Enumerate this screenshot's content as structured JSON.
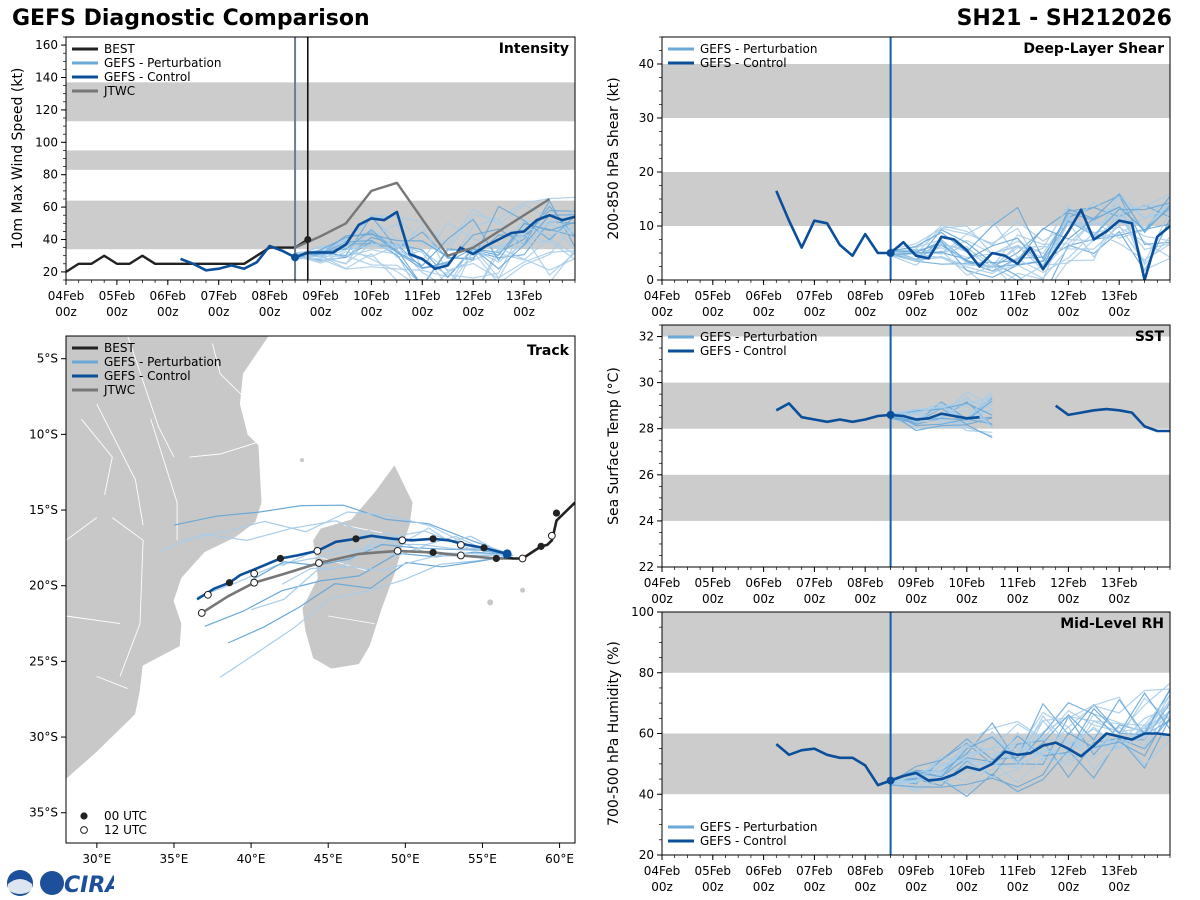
{
  "header": {
    "title_left": "GEFS Diagnostic Comparison",
    "title_right": "SH21 - SH212026"
  },
  "logo": {
    "text": "CIRA",
    "icon": "noaa-seal"
  },
  "colors": {
    "best": "#222222",
    "control": "#0b4f9a",
    "perturbation": "#6aa9d8",
    "perturbation_light": "#a9cde9",
    "jtwc": "#777777",
    "band": "#cccccc",
    "land": "#c8c8c8",
    "now_line": "#1060a8"
  },
  "legend_labels": {
    "best": "BEST",
    "perturbation": "GEFS - Perturbation",
    "control": "GEFS - Control",
    "jtwc": "JTWC",
    "utc00": "00 UTC",
    "utc12": "12 UTC"
  },
  "time_axis": {
    "start_day": 4,
    "end_day": 14,
    "tick_days": [
      4,
      5,
      6,
      7,
      8,
      9,
      10,
      11,
      12,
      13
    ],
    "tick_labels": [
      "04Feb",
      "05Feb",
      "06Feb",
      "07Feb",
      "08Feb",
      "09Feb",
      "10Feb",
      "11Feb",
      "12Feb",
      "13Feb"
    ],
    "tick_sublabel": "00z",
    "analysis_day": 8.5
  },
  "chart_data": [
    {
      "id": "intensity",
      "type": "line",
      "panel_title": "Intensity",
      "ylabel": "10m Max Wind Speed (kt)",
      "ylim": [
        15,
        165
      ],
      "yticks": [
        20,
        40,
        60,
        80,
        100,
        120,
        140,
        160
      ],
      "bands": [
        [
          34,
          64
        ],
        [
          83,
          95
        ],
        [
          113,
          137
        ]
      ],
      "best_line_day": 8.75,
      "series": [
        {
          "name": "BEST",
          "x": [
            4.0,
            4.25,
            4.5,
            4.75,
            5.0,
            5.25,
            5.5,
            5.75,
            6.0,
            6.25,
            6.5,
            6.75,
            7.0,
            7.25,
            7.5,
            7.75,
            8.0,
            8.25,
            8.5,
            8.75
          ],
          "y": [
            20,
            25,
            25,
            30,
            25,
            25,
            30,
            25,
            25,
            25,
            25,
            25,
            25,
            25,
            25,
            30,
            35,
            35,
            35,
            40
          ]
        },
        {
          "name": "GEFS - Control",
          "x": [
            6.25,
            6.5,
            6.75,
            7.0,
            7.25,
            7.5,
            7.75,
            8.0,
            8.25,
            8.5,
            8.75,
            9.0,
            9.25,
            9.5,
            9.75,
            10.0,
            10.25,
            10.5,
            10.75,
            11.0,
            11.25,
            11.5,
            11.75,
            12.0,
            12.25,
            12.5,
            12.75,
            13.0,
            13.25,
            13.5,
            13.75,
            14.0
          ],
          "y": [
            28,
            25,
            21,
            22,
            24,
            22,
            26,
            36,
            33,
            29,
            32,
            32,
            32,
            37,
            49,
            53,
            52,
            57,
            31,
            28,
            22,
            24,
            35,
            31,
            36,
            40,
            44,
            45,
            52,
            55,
            52,
            54
          ]
        },
        {
          "name": "JTWC",
          "x": [
            8.5,
            9.0,
            9.5,
            10.0,
            10.5,
            11.5,
            12.0,
            13.5
          ],
          "y": [
            35,
            42,
            50,
            70,
            75,
            30,
            35,
            65
          ]
        }
      ],
      "perturbation_pattern": {
        "x": [
          8.5,
          9.0,
          9.5,
          10.0,
          10.5,
          11.0,
          11.5,
          12.0,
          12.5,
          13.0,
          13.5,
          14.0
        ],
        "y": [
          30,
          31,
          33,
          40,
          34,
          25,
          22,
          30,
          32,
          38,
          42,
          45
        ]
      }
    },
    {
      "id": "shear",
      "type": "line",
      "panel_title": "Deep-Layer Shear",
      "ylabel": "200-850 hPa Shear (kt)",
      "ylim": [
        0,
        45
      ],
      "yticks": [
        0,
        10,
        20,
        30,
        40
      ],
      "bands": [
        [
          10,
          20
        ],
        [
          30,
          40
        ]
      ],
      "series": [
        {
          "name": "GEFS - Control",
          "x": [
            6.25,
            6.5,
            6.75,
            7.0,
            7.25,
            7.5,
            7.75,
            8.0,
            8.25,
            8.5,
            8.75,
            9.0,
            9.25,
            9.5,
            9.75,
            10.0,
            10.25,
            10.5,
            10.75,
            11.0,
            11.25,
            11.5,
            11.75,
            12.0,
            12.25,
            12.5,
            12.75,
            13.0,
            13.25,
            13.5,
            13.75,
            14.0
          ],
          "y": [
            16.5,
            11,
            6,
            11,
            10.5,
            6.5,
            4.5,
            8.5,
            5,
            5,
            7,
            4.5,
            4,
            8,
            7.5,
            5.5,
            2.5,
            5,
            4.5,
            3,
            6,
            2,
            5.5,
            9,
            13,
            7.5,
            9,
            11,
            10.5,
            0,
            8,
            10
          ]
        }
      ],
      "perturbation_pattern": {
        "x": [
          8.5,
          9.0,
          9.5,
          10.0,
          10.5,
          11.0,
          11.5,
          12.0,
          12.5,
          13.0,
          13.5,
          14.0
        ],
        "y": [
          5,
          5,
          7,
          6,
          5,
          6,
          5,
          10,
          9,
          12,
          10,
          12
        ]
      }
    },
    {
      "id": "sst",
      "type": "line",
      "panel_title": "SST",
      "ylabel": "Sea Surface Temp (°C)",
      "ylim": [
        22,
        32.5
      ],
      "yticks": [
        22,
        24,
        26,
        28,
        30,
        32
      ],
      "bands": [
        [
          24,
          26
        ],
        [
          28,
          30
        ],
        [
          32,
          32.5
        ]
      ],
      "series": [
        {
          "name": "GEFS - Control",
          "x": [
            6.25,
            6.5,
            6.75,
            7.0,
            7.25,
            7.5,
            7.75,
            8.0,
            8.25,
            8.5,
            8.75,
            9.0,
            9.25,
            9.5,
            9.75,
            10.0,
            10.25
          ],
          "y": [
            28.8,
            29.1,
            28.5,
            28.4,
            28.3,
            28.4,
            28.3,
            28.4,
            28.55,
            28.6,
            28.55,
            28.4,
            28.45,
            28.65,
            28.55,
            28.45,
            28.5
          ]
        },
        {
          "name": "GEFS - Control (late)",
          "x": [
            11.75,
            12.0,
            12.25,
            12.5,
            12.75,
            13.0,
            13.25,
            13.5,
            13.75,
            14.0
          ],
          "y": [
            29.0,
            28.6,
            28.7,
            28.8,
            28.85,
            28.8,
            28.7,
            28.1,
            27.9,
            27.9
          ]
        }
      ],
      "perturbation_pattern": {
        "x": [
          8.5,
          9.0,
          9.5,
          10.0,
          10.5
        ],
        "y": [
          28.6,
          28.4,
          28.6,
          28.5,
          28.5
        ]
      }
    },
    {
      "id": "rh",
      "type": "line",
      "panel_title": "Mid-Level RH",
      "ylabel": "700-500 hPa Humidity (%)",
      "ylim": [
        20,
        100
      ],
      "yticks": [
        20,
        40,
        60,
        80,
        100
      ],
      "bands": [
        [
          40,
          60
        ],
        [
          80,
          100
        ]
      ],
      "series": [
        {
          "name": "GEFS - Control",
          "x": [
            6.25,
            6.5,
            6.75,
            7.0,
            7.25,
            7.5,
            7.75,
            8.0,
            8.25,
            8.5,
            8.75,
            9.0,
            9.25,
            9.5,
            9.75,
            10.0,
            10.25,
            10.5,
            10.75,
            11.0,
            11.25,
            11.5,
            11.75,
            12.0,
            12.25,
            12.5,
            12.75,
            13.0,
            13.25,
            13.5,
            13.75,
            14.0
          ],
          "y": [
            56.5,
            53,
            54.5,
            55,
            53,
            52,
            52,
            49.5,
            43,
            44.5,
            46,
            47,
            44.5,
            45,
            46.5,
            49,
            48,
            50,
            54,
            53,
            53.5,
            56,
            57,
            55,
            52.5,
            56,
            60,
            59,
            58,
            60,
            60,
            59.5
          ]
        }
      ],
      "perturbation_pattern": {
        "x": [
          8.5,
          9.0,
          9.5,
          10.0,
          10.5,
          11.0,
          11.5,
          12.0,
          12.5,
          13.0,
          13.5,
          14.0
        ],
        "y": [
          44,
          45,
          47,
          49,
          51,
          53,
          55,
          57,
          58,
          60,
          61,
          63
        ]
      }
    }
  ],
  "track": {
    "panel_title": "Track",
    "lon_range": [
      28,
      61
    ],
    "lat_range": [
      -37,
      -3.5
    ],
    "lon_ticks": [
      30,
      35,
      40,
      45,
      50,
      55,
      60
    ],
    "lon_tick_labels": [
      "30°E",
      "35°E",
      "40°E",
      "45°E",
      "50°E",
      "55°E",
      "60°E"
    ],
    "lat_ticks": [
      -5,
      -10,
      -15,
      -20,
      -25,
      -30,
      -35
    ],
    "lat_tick_labels": [
      "5°S",
      "10°S",
      "15°S",
      "20°S",
      "25°S",
      "30°S",
      "35°S"
    ],
    "best": {
      "lon": [
        61,
        60.3,
        59.8,
        59.6,
        59.5,
        59.2,
        58.8,
        58.2,
        57.6,
        57.0,
        56.4
      ],
      "lat": [
        -14.5,
        -15.2,
        -15.7,
        -16.6,
        -17.0,
        -17.3,
        -17.4,
        -17.8,
        -18.2,
        -18.2,
        -18.1
      ],
      "dots00_lon": [
        59.8,
        58.8
      ],
      "dots00_lat": [
        -15.2,
        -17.4
      ],
      "dots12_lon": [
        59.5,
        57.6
      ],
      "dots12_lat": [
        -16.7,
        -18.2
      ]
    },
    "control": {
      "lon": [
        56.6,
        55.1,
        54.0,
        52.8,
        51.8,
        50.4,
        49.2,
        47.8,
        46.8,
        45.5,
        44.3,
        43.0,
        41.9,
        40.5,
        39.3,
        38.6,
        37.6,
        36.5
      ],
      "lat": [
        -17.9,
        -17.5,
        -17.3,
        -17.0,
        -16.9,
        -17.0,
        -16.9,
        -16.7,
        -16.9,
        -17.1,
        -17.7,
        -18.0,
        -18.2,
        -18.8,
        -19.3,
        -19.8,
        -20.2,
        -20.9
      ],
      "dots00_lon": [
        55.1,
        51.8,
        46.8,
        41.9,
        38.6
      ],
      "dots00_lat": [
        -17.5,
        -16.9,
        -16.9,
        -18.2,
        -19.8
      ],
      "dots12_lon": [
        53.6,
        49.8,
        44.3,
        40.2,
        37.2
      ],
      "dots12_lat": [
        -17.3,
        -17.0,
        -17.7,
        -19.2,
        -20.6
      ]
    },
    "jtwc": {
      "lon": [
        57.0,
        55.9,
        53.6,
        51.8,
        49.5,
        47.0,
        44.4,
        42.2,
        40.2,
        38.5,
        36.8
      ],
      "lat": [
        -18.2,
        -18.2,
        -18.0,
        -17.8,
        -17.7,
        -17.9,
        -18.5,
        -19.2,
        -19.8,
        -20.7,
        -21.8
      ],
      "dots00_lon": [
        55.9,
        51.8
      ],
      "dots00_lat": [
        -18.2,
        -17.8
      ],
      "dots12_lon": [
        53.6,
        49.5,
        44.4,
        40.2,
        36.8
      ],
      "dots12_lat": [
        -18.0,
        -17.7,
        -18.5,
        -19.8,
        -21.8
      ]
    },
    "perturbation_end_points": [
      [
        35,
        -16.0
      ],
      [
        34,
        -17.5
      ],
      [
        38,
        -26
      ],
      [
        37,
        -22.8
      ],
      [
        36.5,
        -21
      ],
      [
        42,
        -18.5
      ],
      [
        40,
        -19.5
      ],
      [
        46,
        -18.0
      ],
      [
        35.5,
        -16.8
      ],
      [
        38.5,
        -24
      ],
      [
        42,
        -20
      ],
      [
        40,
        -21.5
      ]
    ]
  }
}
